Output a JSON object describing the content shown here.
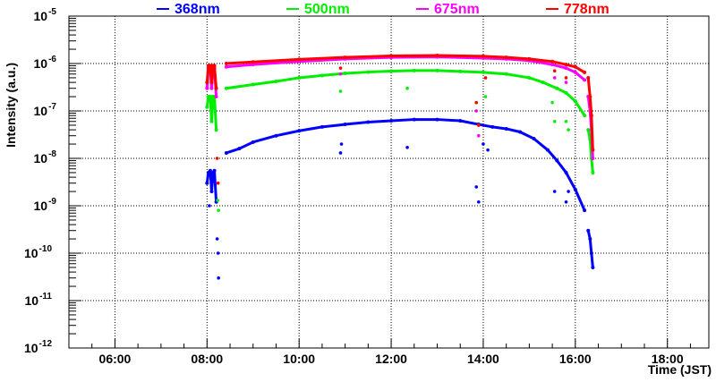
{
  "chart_data": {
    "type": "scatter",
    "title": "",
    "xlabel": "Time (JST)",
    "ylabel": "Intensity (a.u.)",
    "xlim": [
      5.0,
      18.9
    ],
    "ylim": [
      1e-12,
      1e-05
    ],
    "yscale": "log",
    "grid": true,
    "legend_placement": "top",
    "x_ticks": [
      {
        "v": 6,
        "label": "06:00"
      },
      {
        "v": 8,
        "label": "08:00"
      },
      {
        "v": 10,
        "label": "10:00"
      },
      {
        "v": 12,
        "label": "12:00"
      },
      {
        "v": 14,
        "label": "14:00"
      },
      {
        "v": 16,
        "label": "16:00"
      },
      {
        "v": 18,
        "label": "18:00"
      }
    ],
    "y_ticks": [
      {
        "exp": -5,
        "base": "10",
        "sup": "-5"
      },
      {
        "exp": -6,
        "base": "10",
        "sup": "-6"
      },
      {
        "exp": -7,
        "base": "10",
        "sup": "-7"
      },
      {
        "exp": -8,
        "base": "10",
        "sup": "-8"
      },
      {
        "exp": -9,
        "base": "10",
        "sup": "-9"
      },
      {
        "exp": -10,
        "base": "10",
        "sup": "-10"
      },
      {
        "exp": -11,
        "base": "10",
        "sup": "-11"
      },
      {
        "exp": -12,
        "base": "10",
        "sup": "-12"
      }
    ],
    "series": [
      {
        "name": "368nm",
        "color": "#0000ff",
        "segments": [
          [
            [
              8.0,
              3e-09
            ],
            [
              8.03,
              5e-09
            ],
            [
              8.07,
              5.5e-09
            ],
            [
              8.1,
              2e-09
            ],
            [
              8.13,
              5e-09
            ],
            [
              8.16,
              5.5e-09
            ],
            [
              8.2,
              1.2e-09
            ]
          ],
          [
            [
              8.42,
              1.3e-08
            ],
            [
              8.7,
              1.6e-08
            ],
            [
              9.0,
              2.2e-08
            ],
            [
              9.5,
              3e-08
            ],
            [
              10.0,
              3.8e-08
            ],
            [
              10.5,
              4.6e-08
            ],
            [
              11.0,
              5.2e-08
            ],
            [
              11.5,
              5.8e-08
            ],
            [
              12.0,
              6.2e-08
            ],
            [
              12.5,
              6.6e-08
            ],
            [
              13.0,
              6.6e-08
            ],
            [
              13.5,
              6.2e-08
            ],
            [
              13.9,
              5.2e-08
            ],
            [
              14.2,
              4.6e-08
            ],
            [
              14.5,
              4.2e-08
            ],
            [
              14.8,
              3.6e-08
            ],
            [
              15.1,
              2.6e-08
            ],
            [
              15.4,
              1.5e-08
            ],
            [
              15.6,
              9e-09
            ],
            [
              15.8,
              5e-09
            ],
            [
              16.0,
              2.2e-09
            ],
            [
              16.2,
              8e-10
            ]
          ],
          [
            [
              16.28,
              3e-10
            ],
            [
              16.32,
              2e-10
            ],
            [
              16.35,
              1e-10
            ],
            [
              16.38,
              5e-11
            ]
          ]
        ],
        "outliers": [
          [
            8.05,
            1e-09
          ],
          [
            8.22,
            2e-10
          ],
          [
            8.24,
            1e-10
          ],
          [
            8.25,
            3e-11
          ],
          [
            10.9,
            1.3e-08
          ],
          [
            10.92,
            2e-08
          ],
          [
            12.35,
            1.7e-08
          ],
          [
            13.85,
            2.5e-09
          ],
          [
            13.9,
            1.2e-09
          ],
          [
            14.0,
            2e-08
          ],
          [
            14.1,
            1.5e-08
          ],
          [
            15.55,
            2e-09
          ],
          [
            15.8,
            1.2e-09
          ],
          [
            15.85,
            2e-09
          ]
        ]
      },
      {
        "name": "500nm",
        "color": "#00ee00",
        "segments": [
          [
            [
              8.0,
              1.2e-07
            ],
            [
              8.03,
              2e-07
            ],
            [
              8.07,
              2e-07
            ],
            [
              8.1,
              6e-08
            ],
            [
              8.13,
              2e-07
            ],
            [
              8.16,
              2e-07
            ],
            [
              8.2,
              4e-08
            ]
          ],
          [
            [
              8.42,
              3e-07
            ],
            [
              9.0,
              3.6e-07
            ],
            [
              9.5,
              4.2e-07
            ],
            [
              10.0,
              5e-07
            ],
            [
              10.5,
              5.6e-07
            ],
            [
              11.0,
              6.2e-07
            ],
            [
              11.5,
              6.6e-07
            ],
            [
              12.0,
              6.9e-07
            ],
            [
              12.5,
              7.1e-07
            ],
            [
              13.0,
              7.1e-07
            ],
            [
              13.5,
              6.8e-07
            ],
            [
              14.0,
              6.5e-07
            ],
            [
              14.5,
              6e-07
            ],
            [
              15.0,
              5e-07
            ],
            [
              15.3,
              4e-07
            ],
            [
              15.6,
              3e-07
            ],
            [
              15.8,
              2.4e-07
            ],
            [
              16.0,
              1.6e-07
            ],
            [
              16.2,
              8e-08
            ]
          ],
          [
            [
              16.28,
              4e-08
            ],
            [
              16.32,
              2.5e-08
            ],
            [
              16.35,
              1e-08
            ],
            [
              16.38,
              5e-09
            ]
          ]
        ],
        "outliers": [
          [
            8.23,
            1.3e-09
          ],
          [
            8.25,
            8e-10
          ],
          [
            10.9,
            2.6e-07
          ],
          [
            12.35,
            3e-07
          ],
          [
            13.85,
            1.5e-07
          ],
          [
            13.9,
            5e-08
          ],
          [
            14.05,
            2e-07
          ],
          [
            15.5,
            1.5e-07
          ],
          [
            15.55,
            6e-08
          ],
          [
            15.8,
            6e-08
          ],
          [
            15.85,
            4e-08
          ]
        ]
      },
      {
        "name": "675nm",
        "color": "#ff00ff",
        "segments": [
          [
            [
              8.0,
              3e-07
            ],
            [
              8.03,
              8e-07
            ],
            [
              8.07,
              8e-07
            ],
            [
              8.1,
              3e-07
            ],
            [
              8.13,
              8e-07
            ],
            [
              8.16,
              8e-07
            ],
            [
              8.2,
              2e-07
            ]
          ],
          [
            [
              8.42,
              8.5e-07
            ],
            [
              9.0,
              9.5e-07
            ],
            [
              10.0,
              1.1e-06
            ],
            [
              11.0,
              1.25e-06
            ],
            [
              12.0,
              1.35e-06
            ],
            [
              13.0,
              1.38e-06
            ],
            [
              14.0,
              1.3e-06
            ],
            [
              14.5,
              1.25e-06
            ],
            [
              15.0,
              1.15e-06
            ],
            [
              15.5,
              9.5e-07
            ],
            [
              15.8,
              8e-07
            ],
            [
              16.0,
              6.5e-07
            ],
            [
              16.2,
              4.5e-07
            ]
          ],
          [
            [
              16.28,
              2e-07
            ],
            [
              16.32,
              1e-07
            ],
            [
              16.35,
              4e-08
            ],
            [
              16.38,
              1e-08
            ]
          ]
        ],
        "outliers": [
          [
            10.9,
            6e-07
          ],
          [
            13.85,
            1e-07
          ],
          [
            13.9,
            3e-08
          ],
          [
            15.55,
            5e-07
          ],
          [
            15.8,
            4e-07
          ]
        ]
      },
      {
        "name": "778nm",
        "color": "#ff0000",
        "segments": [
          [
            [
              8.0,
              4e-07
            ],
            [
              8.03,
              9e-07
            ],
            [
              8.07,
              9e-07
            ],
            [
              8.1,
              4e-07
            ],
            [
              8.13,
              9e-07
            ],
            [
              8.16,
              9e-07
            ],
            [
              8.2,
              3e-07
            ]
          ],
          [
            [
              8.42,
              1e-06
            ],
            [
              9.0,
              1.08e-06
            ],
            [
              10.0,
              1.22e-06
            ],
            [
              11.0,
              1.35e-06
            ],
            [
              12.0,
              1.45e-06
            ],
            [
              13.0,
              1.48e-06
            ],
            [
              14.0,
              1.42e-06
            ],
            [
              14.5,
              1.35e-06
            ],
            [
              15.0,
              1.25e-06
            ],
            [
              15.5,
              1.1e-06
            ],
            [
              15.8,
              9.5e-07
            ],
            [
              16.0,
              8.5e-07
            ],
            [
              16.2,
              6.5e-07
            ]
          ],
          [
            [
              16.28,
              5e-07
            ],
            [
              16.32,
              2e-07
            ],
            [
              16.35,
              8e-08
            ],
            [
              16.38,
              1.5e-08
            ]
          ]
        ],
        "outliers": [
          [
            8.22,
            1e-08
          ],
          [
            8.24,
            3e-09
          ],
          [
            10.9,
            8e-07
          ],
          [
            13.85,
            1.5e-07
          ],
          [
            13.9,
            5e-08
          ],
          [
            14.05,
            5e-07
          ],
          [
            15.55,
            7e-07
          ],
          [
            15.8,
            5e-07
          ]
        ]
      }
    ]
  }
}
